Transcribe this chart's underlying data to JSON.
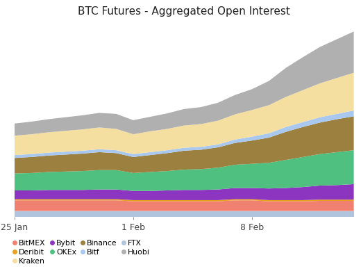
{
  "title": "BTC Futures - Aggregated Open Interest",
  "x_labels": [
    "25 Jan",
    "1 Feb",
    "8 Feb"
  ],
  "x_tick_positions": [
    0,
    7,
    14
  ],
  "n_points": 21,
  "background_color": "#ffffff",
  "grid_color": "#c8c8c8",
  "series": {
    "FTX": {
      "color": "#b0c4de",
      "values": [
        1.2,
        1.2,
        1.2,
        1.2,
        1.2,
        1.2,
        1.2,
        1.2,
        1.2,
        1.2,
        1.2,
        1.2,
        1.2,
        1.2,
        1.2,
        1.2,
        1.2,
        1.2,
        1.2,
        1.2,
        1.2
      ]
    },
    "BitMEX": {
      "color": "#f08070",
      "values": [
        2.2,
        2.2,
        2.2,
        2.2,
        2.2,
        2.2,
        2.2,
        2.0,
        2.0,
        2.0,
        2.0,
        2.0,
        2.0,
        2.2,
        2.2,
        2.0,
        2.0,
        2.0,
        2.1,
        2.1,
        2.1
      ]
    },
    "Deribit": {
      "color": "#e8a020",
      "values": [
        0.25,
        0.25,
        0.25,
        0.25,
        0.25,
        0.25,
        0.25,
        0.25,
        0.25,
        0.25,
        0.25,
        0.25,
        0.25,
        0.25,
        0.25,
        0.25,
        0.25,
        0.25,
        0.25,
        0.25,
        0.25
      ]
    },
    "Bybit": {
      "color": "#8b35c0",
      "values": [
        1.8,
        1.8,
        1.9,
        1.9,
        1.9,
        2.0,
        2.0,
        1.9,
        1.9,
        2.0,
        2.1,
        2.1,
        2.2,
        2.3,
        2.3,
        2.4,
        2.5,
        2.7,
        2.9,
        3.0,
        3.2
      ]
    },
    "OKEx": {
      "color": "#50c080",
      "values": [
        3.5,
        3.6,
        3.7,
        3.8,
        3.9,
        4.0,
        4.0,
        3.7,
        3.9,
        4.0,
        4.2,
        4.3,
        4.5,
        4.8,
        5.0,
        5.3,
        5.8,
        6.2,
        6.5,
        6.8,
        7.0
      ]
    },
    "Binance": {
      "color": "#9b8040",
      "values": [
        3.2,
        3.3,
        3.4,
        3.5,
        3.6,
        3.7,
        3.5,
        3.3,
        3.5,
        3.7,
        3.9,
        4.0,
        4.2,
        4.5,
        4.8,
        5.2,
        5.8,
        6.2,
        6.5,
        6.8,
        7.0
      ]
    },
    "Bitf": {
      "color": "#a8c8f0",
      "values": [
        0.6,
        0.6,
        0.6,
        0.6,
        0.6,
        0.6,
        0.6,
        0.6,
        0.6,
        0.6,
        0.6,
        0.6,
        0.6,
        0.7,
        0.8,
        0.9,
        1.0,
        1.0,
        1.1,
        1.1,
        1.2
      ]
    },
    "Kraken": {
      "color": "#f5dfa0",
      "values": [
        4.0,
        4.1,
        4.2,
        4.3,
        4.4,
        4.5,
        4.4,
        4.1,
        4.3,
        4.4,
        4.6,
        4.7,
        4.9,
        5.2,
        5.5,
        5.8,
        6.2,
        6.6,
        7.0,
        7.4,
        7.8
      ]
    },
    "Huobi": {
      "color": "#b0b0b0",
      "values": [
        2.5,
        2.6,
        2.7,
        2.8,
        2.9,
        3.0,
        3.1,
        2.9,
        3.0,
        3.2,
        3.4,
        3.5,
        3.7,
        4.0,
        4.3,
        5.0,
        6.0,
        6.8,
        7.5,
        8.0,
        8.5
      ]
    }
  },
  "legend_order": [
    "BitMEX",
    "Deribit",
    "Kraken",
    "Bybit",
    "OKEx",
    "Binance",
    "Bitf",
    "FTX",
    "Huobi"
  ],
  "legend_labels": [
    "BitMEX",
    "Deribit",
    "Kraken",
    "Bybit",
    "OKEx",
    "Binance",
    "Bitf",
    "FTX",
    "Huobi"
  ],
  "stack_order": [
    "FTX",
    "BitMEX",
    "Deribit",
    "Bybit",
    "OKEx",
    "Binance",
    "Bitf",
    "Kraken",
    "Huobi"
  ]
}
